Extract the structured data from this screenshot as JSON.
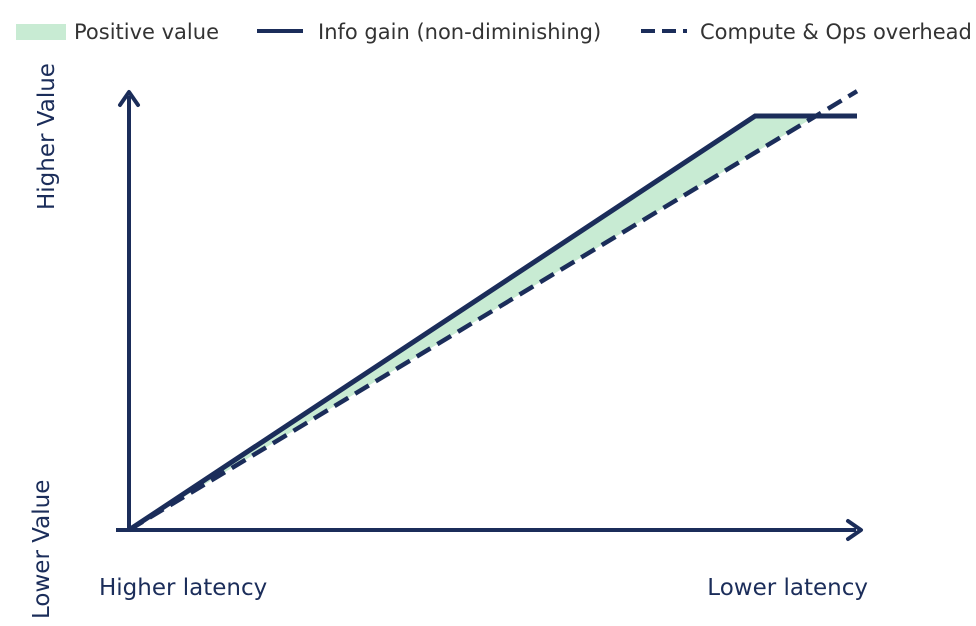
{
  "chart_data": {
    "type": "line",
    "title": "",
    "legend": {
      "placement": "top",
      "items": [
        {
          "label": "Positive value",
          "style": "fill",
          "color": "#c8ebd3"
        },
        {
          "label": "Info gain (non-diminishing)",
          "style": "solid",
          "color": "#1b2d5a"
        },
        {
          "label": "Compute & Ops overhead",
          "style": "dashed",
          "color": "#1b2d5a"
        }
      ]
    },
    "x_axis": {
      "start_label": "Higher latency",
      "end_label": "Lower latency",
      "range": [
        0,
        1
      ]
    },
    "y_axis": {
      "start_label": "Lower Value",
      "end_label": "Higher Value",
      "range": [
        0,
        1
      ]
    },
    "series": [
      {
        "name": "Info gain (non-diminishing)",
        "style": "solid",
        "x": [
          0,
          0.86,
          1.0
        ],
        "y": [
          0,
          1.0,
          1.0
        ]
      },
      {
        "name": "Compute & Ops overhead",
        "style": "dashed",
        "x": [
          0,
          1.0
        ],
        "y": [
          0,
          1.06
        ]
      }
    ],
    "shaded_region": {
      "label": "Positive value",
      "between": [
        "Info gain (non-diminishing)",
        "Compute & Ops overhead"
      ]
    },
    "grid": false,
    "colors": {
      "line": "#1b2d5a",
      "fill": "#c8ebd3",
      "text": "#1b2d5a",
      "legend_text": "#333333"
    }
  }
}
